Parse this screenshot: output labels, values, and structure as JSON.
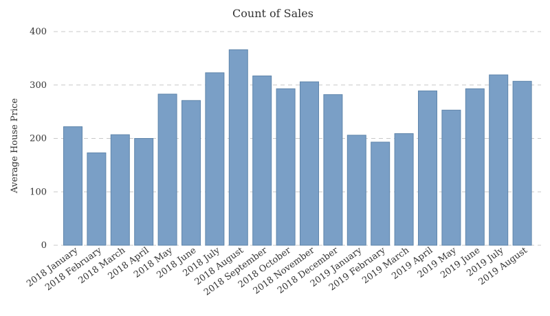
{
  "chart_data": {
    "type": "bar",
    "title": "Count of Sales",
    "xlabel": "",
    "ylabel": "Average House Price",
    "ylim": [
      0,
      400
    ],
    "yticks": [
      0,
      100,
      200,
      300,
      400
    ],
    "grid": true,
    "bar_color": "#7a9fc6",
    "bar_edge_color": "#5f85ab",
    "categories": [
      "2018 January",
      "2018 February",
      "2018 March",
      "2018 April",
      "2018 May",
      "2018 June",
      "2018 July",
      "2018 August",
      "2018 September",
      "2018 October",
      "2018 November",
      "2018 December",
      "2019 January",
      "2019 February",
      "2019 March",
      "2019 April",
      "2019 May",
      "2019 June",
      "2019 July",
      "2019 August"
    ],
    "values": [
      222,
      173,
      207,
      200,
      283,
      271,
      323,
      366,
      317,
      293,
      306,
      282,
      206,
      193,
      209,
      289,
      253,
      293,
      319,
      307
    ]
  }
}
